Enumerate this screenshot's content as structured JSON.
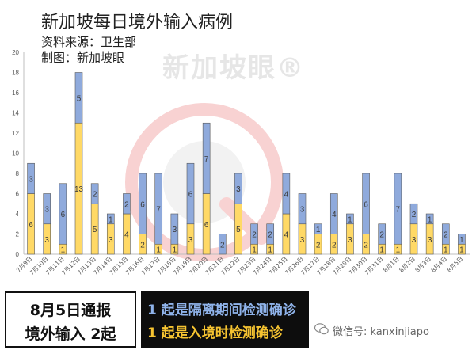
{
  "header": {
    "title": "新加坡每日境外输入病例",
    "source": "资料来源：卫生部",
    "credit": "制图：新加坡眼"
  },
  "watermark": {
    "text": "新加坡眼®"
  },
  "banner": {
    "left_line1": "8月5日通报",
    "left_line2": "境外输入 2起",
    "right_line1": "1 起是隔离期间检测确诊",
    "right_line2": "1 起是入境时检测确诊"
  },
  "footer": {
    "wechat": "微信号: kanxinjiapo"
  },
  "colors": {
    "quarantine": "#8faadc",
    "arrival": "#ffd966",
    "watermark_red": "#f7c9c9"
  },
  "chart_data": {
    "type": "bar",
    "stacked": true,
    "categories": [
      "7月9日",
      "7月10日",
      "7月11日",
      "7月12日",
      "7月13日",
      "7月14日",
      "7月15日",
      "7月16日",
      "7月17日",
      "7月18日",
      "7月19日",
      "7月20日",
      "7月21日",
      "7月22日",
      "7月23日",
      "7月24日",
      "7月25日",
      "7月26日",
      "7月27日",
      "7月28日",
      "7月29日",
      "7月30日",
      "7月31日",
      "8月1日",
      "8月2日",
      "8月3日",
      "8月4日",
      "8月5日"
    ],
    "series": [
      {
        "values": [
          6,
          3,
          1,
          13,
          5,
          3,
          4,
          2,
          1,
          1,
          3,
          6,
          0,
          5,
          1,
          1,
          4,
          3,
          2,
          2,
          3,
          2,
          1,
          1,
          3,
          3,
          1,
          1
        ]
      },
      {
        "values": [
          3,
          3,
          6,
          5,
          2,
          1,
          2,
          6,
          7,
          3,
          6,
          7,
          2,
          3,
          2,
          2,
          4,
          3,
          1,
          4,
          1,
          6,
          2,
          7,
          2,
          1,
          2,
          1
        ]
      }
    ],
    "ylim": [
      0,
      20
    ],
    "yticks": [
      0,
      2,
      4,
      6,
      8,
      10,
      12,
      14,
      16,
      18,
      20
    ],
    "grid": false
  }
}
